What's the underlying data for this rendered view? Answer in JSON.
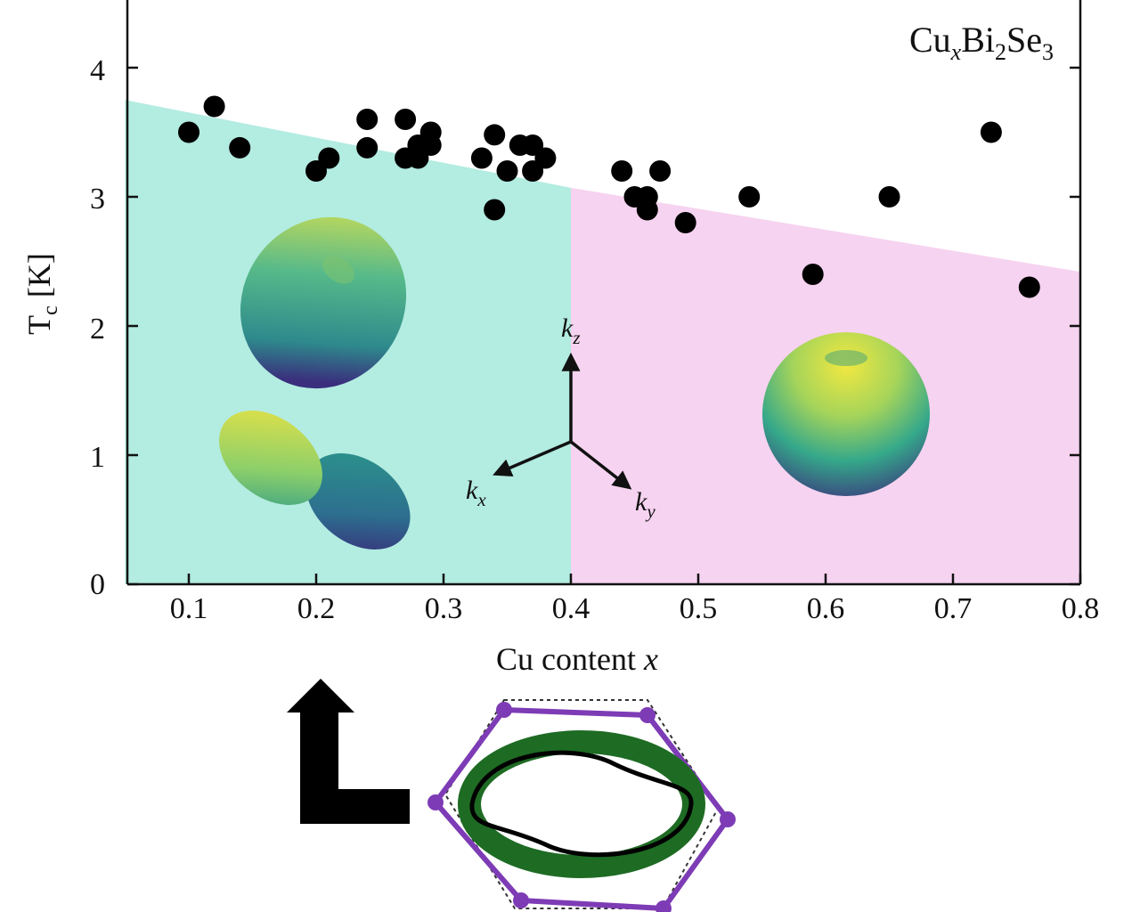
{
  "chart_data": {
    "type": "scatter",
    "title": "",
    "material_label": {
      "base": "Cu",
      "sub_x": "x",
      "mid": "Bi",
      "sub_2": "2",
      "end": "Se",
      "sub_3": "3"
    },
    "xlabel": {
      "text": "Cu content ",
      "var": "x"
    },
    "ylabel": {
      "main": "T",
      "sub": "c",
      "unit": " [K]"
    },
    "xlim": [
      0.05,
      0.8
    ],
    "ylim": [
      0,
      4.5
    ],
    "x_ticks": [
      "0.1",
      "0.2",
      "0.3",
      "0.4",
      "0.5",
      "0.6",
      "0.7",
      "0.8"
    ],
    "y_ticks": [
      "0",
      "1",
      "2",
      "3",
      "4"
    ],
    "x_tick_values": [
      0.1,
      0.2,
      0.3,
      0.4,
      0.5,
      0.6,
      0.7,
      0.8
    ],
    "y_tick_values": [
      0,
      1,
      2,
      3,
      4
    ],
    "grid": false,
    "legend": "none",
    "regions": [
      {
        "x_start": 0.05,
        "x_end": 0.4,
        "top_left": 3.75,
        "top_right": 3.07,
        "color": "#b3ece1"
      },
      {
        "x_start": 0.4,
        "x_end": 0.8,
        "top_left": 3.07,
        "top_right": 2.42,
        "color": "#f6d3f0"
      }
    ],
    "series": [
      {
        "marker_color": "#000000",
        "points": [
          [
            0.1,
            3.5
          ],
          [
            0.12,
            3.7
          ],
          [
            0.14,
            3.38
          ],
          [
            0.2,
            3.2
          ],
          [
            0.21,
            3.3
          ],
          [
            0.24,
            3.6
          ],
          [
            0.24,
            3.38
          ],
          [
            0.27,
            3.6
          ],
          [
            0.27,
            3.3
          ],
          [
            0.28,
            3.3
          ],
          [
            0.28,
            3.4
          ],
          [
            0.29,
            3.4
          ],
          [
            0.29,
            3.5
          ],
          [
            0.33,
            3.3
          ],
          [
            0.34,
            3.48
          ],
          [
            0.34,
            2.9
          ],
          [
            0.35,
            3.2
          ],
          [
            0.36,
            3.4
          ],
          [
            0.37,
            3.4
          ],
          [
            0.37,
            3.2
          ],
          [
            0.38,
            3.3
          ],
          [
            0.44,
            3.2
          ],
          [
            0.45,
            3.0
          ],
          [
            0.46,
            3.0
          ],
          [
            0.46,
            2.9
          ],
          [
            0.47,
            3.2
          ],
          [
            0.49,
            2.8
          ],
          [
            0.54,
            3.0
          ],
          [
            0.59,
            2.4
          ],
          [
            0.65,
            3.0
          ],
          [
            0.73,
            3.5
          ],
          [
            0.76,
            2.3
          ]
        ]
      }
    ],
    "axes_labels": {
      "kz": "k",
      "kz_sub": "z",
      "kx": "k",
      "kx_sub": "x",
      "ky": "k",
      "ky_sub": "y"
    },
    "colors": {
      "polygon": "#7d3cb5",
      "fermi_fill": "#1e6b24",
      "fermi_line": "#000000",
      "surface_yellow": "#f0e442",
      "surface_teal": "#2a9b8a",
      "surface_purple": "#3d2d7a"
    }
  }
}
